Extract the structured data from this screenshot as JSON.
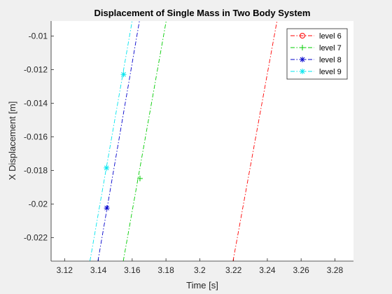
{
  "chart_data": {
    "type": "line",
    "title": "Displacement of Single Mass in Two Body System",
    "xlabel": "Time [s]",
    "ylabel": "X Displacement [m]",
    "xlim": [
      3.112,
      3.291
    ],
    "ylim": [
      -0.0234,
      -0.0091
    ],
    "xticks": [
      3.12,
      3.14,
      3.16,
      3.18,
      3.2,
      3.22,
      3.24,
      3.26,
      3.28
    ],
    "xtick_labels": [
      "3.12",
      "3.14",
      "3.16",
      "3.18",
      "3.2",
      "3.22",
      "3.24",
      "3.26",
      "3.28"
    ],
    "yticks": [
      -0.022,
      -0.02,
      -0.018,
      -0.016,
      -0.014,
      -0.012,
      -0.01
    ],
    "ytick_labels": [
      "-0.022",
      "-0.02",
      "-0.018",
      "-0.016",
      "-0.014",
      "-0.012",
      "-0.01"
    ],
    "grid": false,
    "legend_position": "top-right",
    "series": [
      {
        "name": "level 6",
        "color": "#ff0000",
        "marker": "circle",
        "line": "dashdot",
        "x": [
          3.2197,
          3.2457
        ],
        "y": [
          -0.0234,
          -0.0091
        ],
        "markers_x": [],
        "markers_y": []
      },
      {
        "name": "level 7",
        "color": "#00cc00",
        "marker": "plus",
        "line": "dashdot",
        "x": [
          3.1547,
          3.1801
        ],
        "y": [
          -0.0234,
          -0.0091
        ],
        "markers_x": [
          3.1646
        ],
        "markers_y": [
          -0.01848
        ]
      },
      {
        "name": "level 8",
        "color": "#0000cc",
        "marker": "asterisk",
        "line": "dashdot",
        "x": [
          3.1397,
          3.1643
        ],
        "y": [
          -0.0234,
          -0.0091
        ],
        "markers_x": [
          3.145
        ],
        "markers_y": [
          -0.02024
        ]
      },
      {
        "name": "level 9",
        "color": "#00e5ee",
        "marker": "asterisk",
        "line": "dashdot",
        "x": [
          3.135,
          3.16
        ],
        "y": [
          -0.0234,
          -0.0091
        ],
        "markers_x": [
          3.1448,
          3.1549
        ],
        "markers_y": [
          -0.01785,
          -0.01228
        ]
      }
    ]
  }
}
